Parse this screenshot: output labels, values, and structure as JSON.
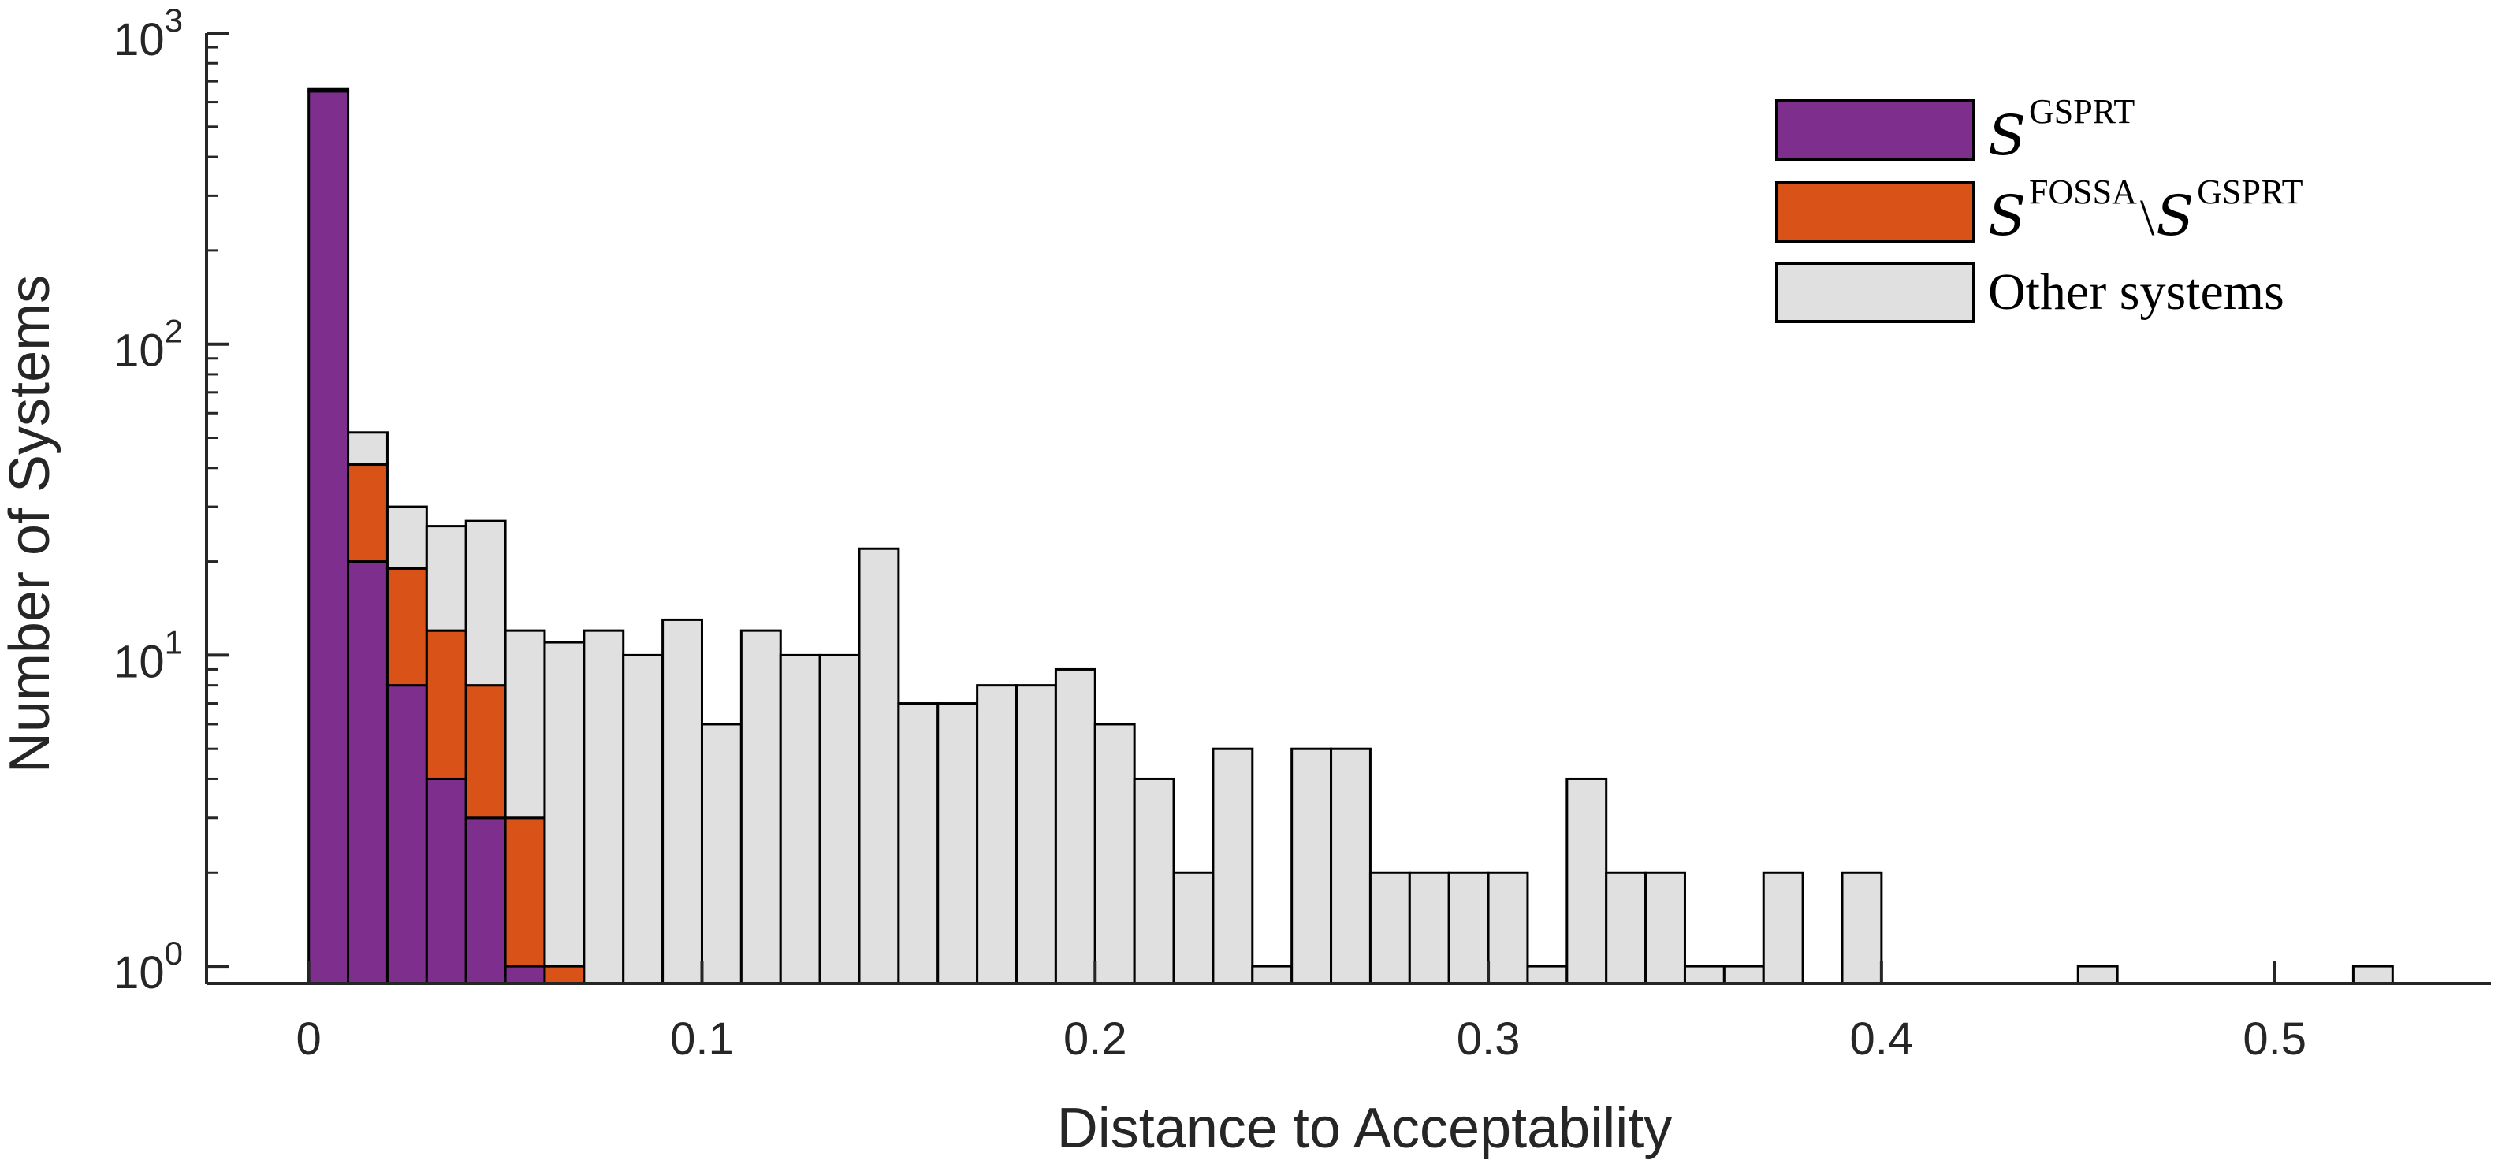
{
  "chart_data": {
    "type": "bar",
    "stacked": true,
    "xlabel": "Distance to Acceptability",
    "ylabel": "Number of Systems",
    "yscale": "log",
    "xlim": [
      -0.026,
      0.555
    ],
    "ylim": [
      0.88,
      1000
    ],
    "grid": false,
    "legend_position": "top-right",
    "x_ticks": [
      {
        "value": 0,
        "label": "0"
      },
      {
        "value": 0.1,
        "label": "0.1"
      },
      {
        "value": 0.2,
        "label": "0.2"
      },
      {
        "value": 0.3,
        "label": "0.3"
      },
      {
        "value": 0.4,
        "label": "0.4"
      },
      {
        "value": 0.5,
        "label": "0.5"
      }
    ],
    "y_ticks": [
      {
        "value": 1,
        "base": "10",
        "exp": "0"
      },
      {
        "value": 10,
        "base": "10",
        "exp": "1"
      },
      {
        "value": 100,
        "base": "10",
        "exp": "2"
      },
      {
        "value": 1000,
        "base": "10",
        "exp": "3"
      }
    ],
    "bin_width": 0.01,
    "bin_starts": [
      0,
      0.01,
      0.02,
      0.03,
      0.04,
      0.05,
      0.06,
      0.07,
      0.08,
      0.09,
      0.1,
      0.11,
      0.12,
      0.13,
      0.14,
      0.15,
      0.16,
      0.17,
      0.18,
      0.19,
      0.2,
      0.21,
      0.22,
      0.23,
      0.24,
      0.25,
      0.26,
      0.27,
      0.28,
      0.29,
      0.3,
      0.31,
      0.32,
      0.33,
      0.34,
      0.35,
      0.36,
      0.37,
      0.38,
      0.39,
      0.4,
      0.41,
      0.42,
      0.43,
      0.44,
      0.45,
      0.46,
      0.47,
      0.48,
      0.49,
      0.5,
      0.51,
      0.52
    ],
    "series": [
      {
        "legend": {
          "main": "S",
          "sup": "GSPRT"
        },
        "color": "#7E2F8E",
        "values": [
          650,
          20,
          8,
          4,
          3,
          1,
          0,
          0,
          0,
          0,
          0,
          0,
          0,
          0,
          0,
          0,
          0,
          0,
          0,
          0,
          0,
          0,
          0,
          0,
          0,
          0,
          0,
          0,
          0,
          0,
          0,
          0,
          0,
          0,
          0,
          0,
          0,
          0,
          0,
          0,
          0,
          0,
          0,
          0,
          0,
          0,
          0,
          0,
          0,
          0,
          0,
          0,
          0
        ]
      },
      {
        "legend": {
          "main": "S",
          "sup": "FOSSA",
          "sep": "\\",
          "main2": "S",
          "sup2": "GSPRT"
        },
        "color": "#D95319",
        "values": [
          0,
          21,
          11,
          8,
          5,
          2,
          1,
          0,
          0,
          0,
          0,
          0,
          0,
          0,
          0,
          0,
          0,
          0,
          0,
          0,
          0,
          0,
          0,
          0,
          0,
          0,
          0,
          0,
          0,
          0,
          0,
          0,
          0,
          0,
          0,
          0,
          0,
          0,
          0,
          0,
          0,
          0,
          0,
          0,
          0,
          0,
          0,
          0,
          0,
          0,
          0,
          0,
          0
        ]
      },
      {
        "legend": {
          "text": "Other systems"
        },
        "color": "#E0E0E0",
        "values": [
          10,
          11,
          11,
          14,
          19,
          9,
          10,
          12,
          10,
          13,
          6,
          12,
          10,
          10,
          22,
          7,
          7,
          8,
          8,
          9,
          6,
          4,
          2,
          5,
          1,
          5,
          5,
          2,
          2,
          2,
          2,
          1,
          4,
          2,
          2,
          1,
          1,
          2,
          0,
          2,
          0,
          0,
          0,
          0,
          0,
          1,
          0,
          0,
          0,
          0,
          0,
          0,
          1
        ]
      }
    ]
  }
}
